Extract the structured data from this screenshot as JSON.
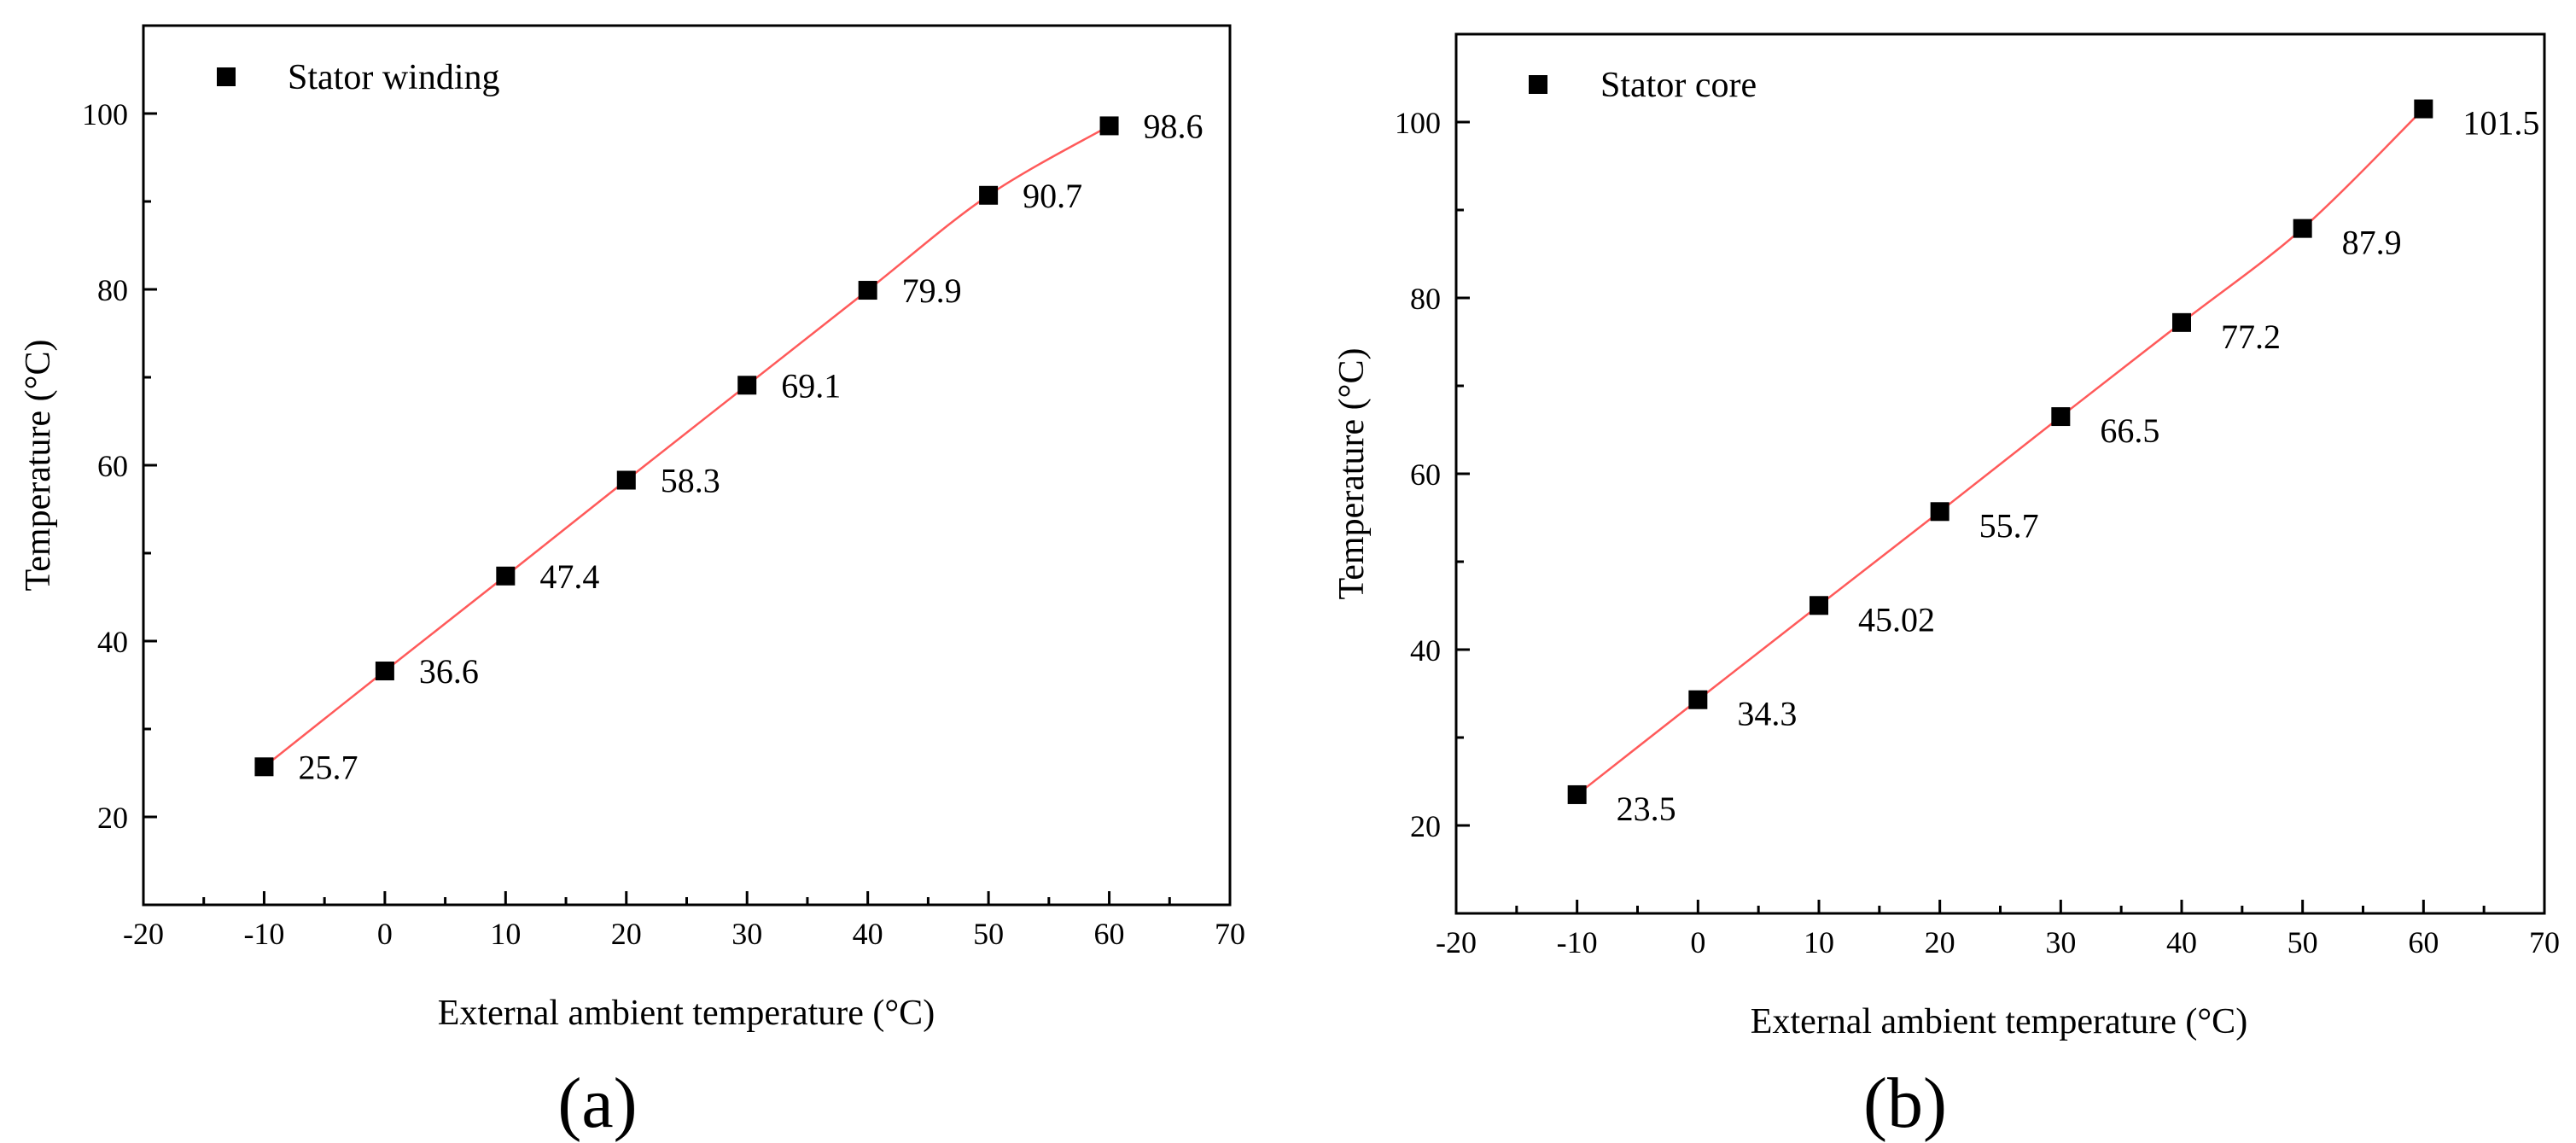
{
  "colors": {
    "fit_line": "#ff5a5a",
    "marker": "#000000",
    "axis": "#000000"
  },
  "chart_data": [
    {
      "type": "scatter",
      "caption": "(a)",
      "legend": "Stator winding",
      "xlabel": "External ambient temperature (°C)",
      "ylabel": "Temperature (°C)",
      "xlim": [
        -20,
        70
      ],
      "ylim": [
        10,
        110
      ],
      "xticks": [
        -20,
        -10,
        0,
        10,
        20,
        30,
        40,
        50,
        60,
        70
      ],
      "yticks": [
        20,
        40,
        60,
        80,
        100
      ],
      "x": [
        -10,
        0,
        10,
        20,
        30,
        40,
        50,
        60
      ],
      "y": [
        25.7,
        36.6,
        47.4,
        58.3,
        69.1,
        79.9,
        90.7,
        98.6
      ],
      "labels": [
        "25.7",
        "36.6",
        "47.4",
        "58.3",
        "69.1",
        "79.9",
        "90.7",
        "98.6"
      ],
      "fit": "smooth curve through points"
    },
    {
      "type": "scatter",
      "caption": "(b)",
      "legend": "Stator core",
      "xlabel": "External ambient temperature (°C)",
      "ylabel": "Temperature (°C)",
      "xlim": [
        -20,
        70
      ],
      "ylim": [
        10,
        110
      ],
      "xticks": [
        -20,
        -10,
        0,
        10,
        20,
        30,
        40,
        50,
        60,
        70
      ],
      "yticks": [
        20,
        40,
        60,
        80,
        100
      ],
      "x": [
        -10,
        0,
        10,
        20,
        30,
        40,
        50,
        60
      ],
      "y": [
        23.5,
        34.3,
        45.02,
        55.7,
        66.5,
        77.2,
        87.9,
        101.5
      ],
      "labels": [
        "23.5",
        "34.3",
        "45.02",
        "55.7",
        "66.5",
        "77.2",
        "87.9",
        "101.5"
      ],
      "fit": "smooth curve through points"
    }
  ]
}
